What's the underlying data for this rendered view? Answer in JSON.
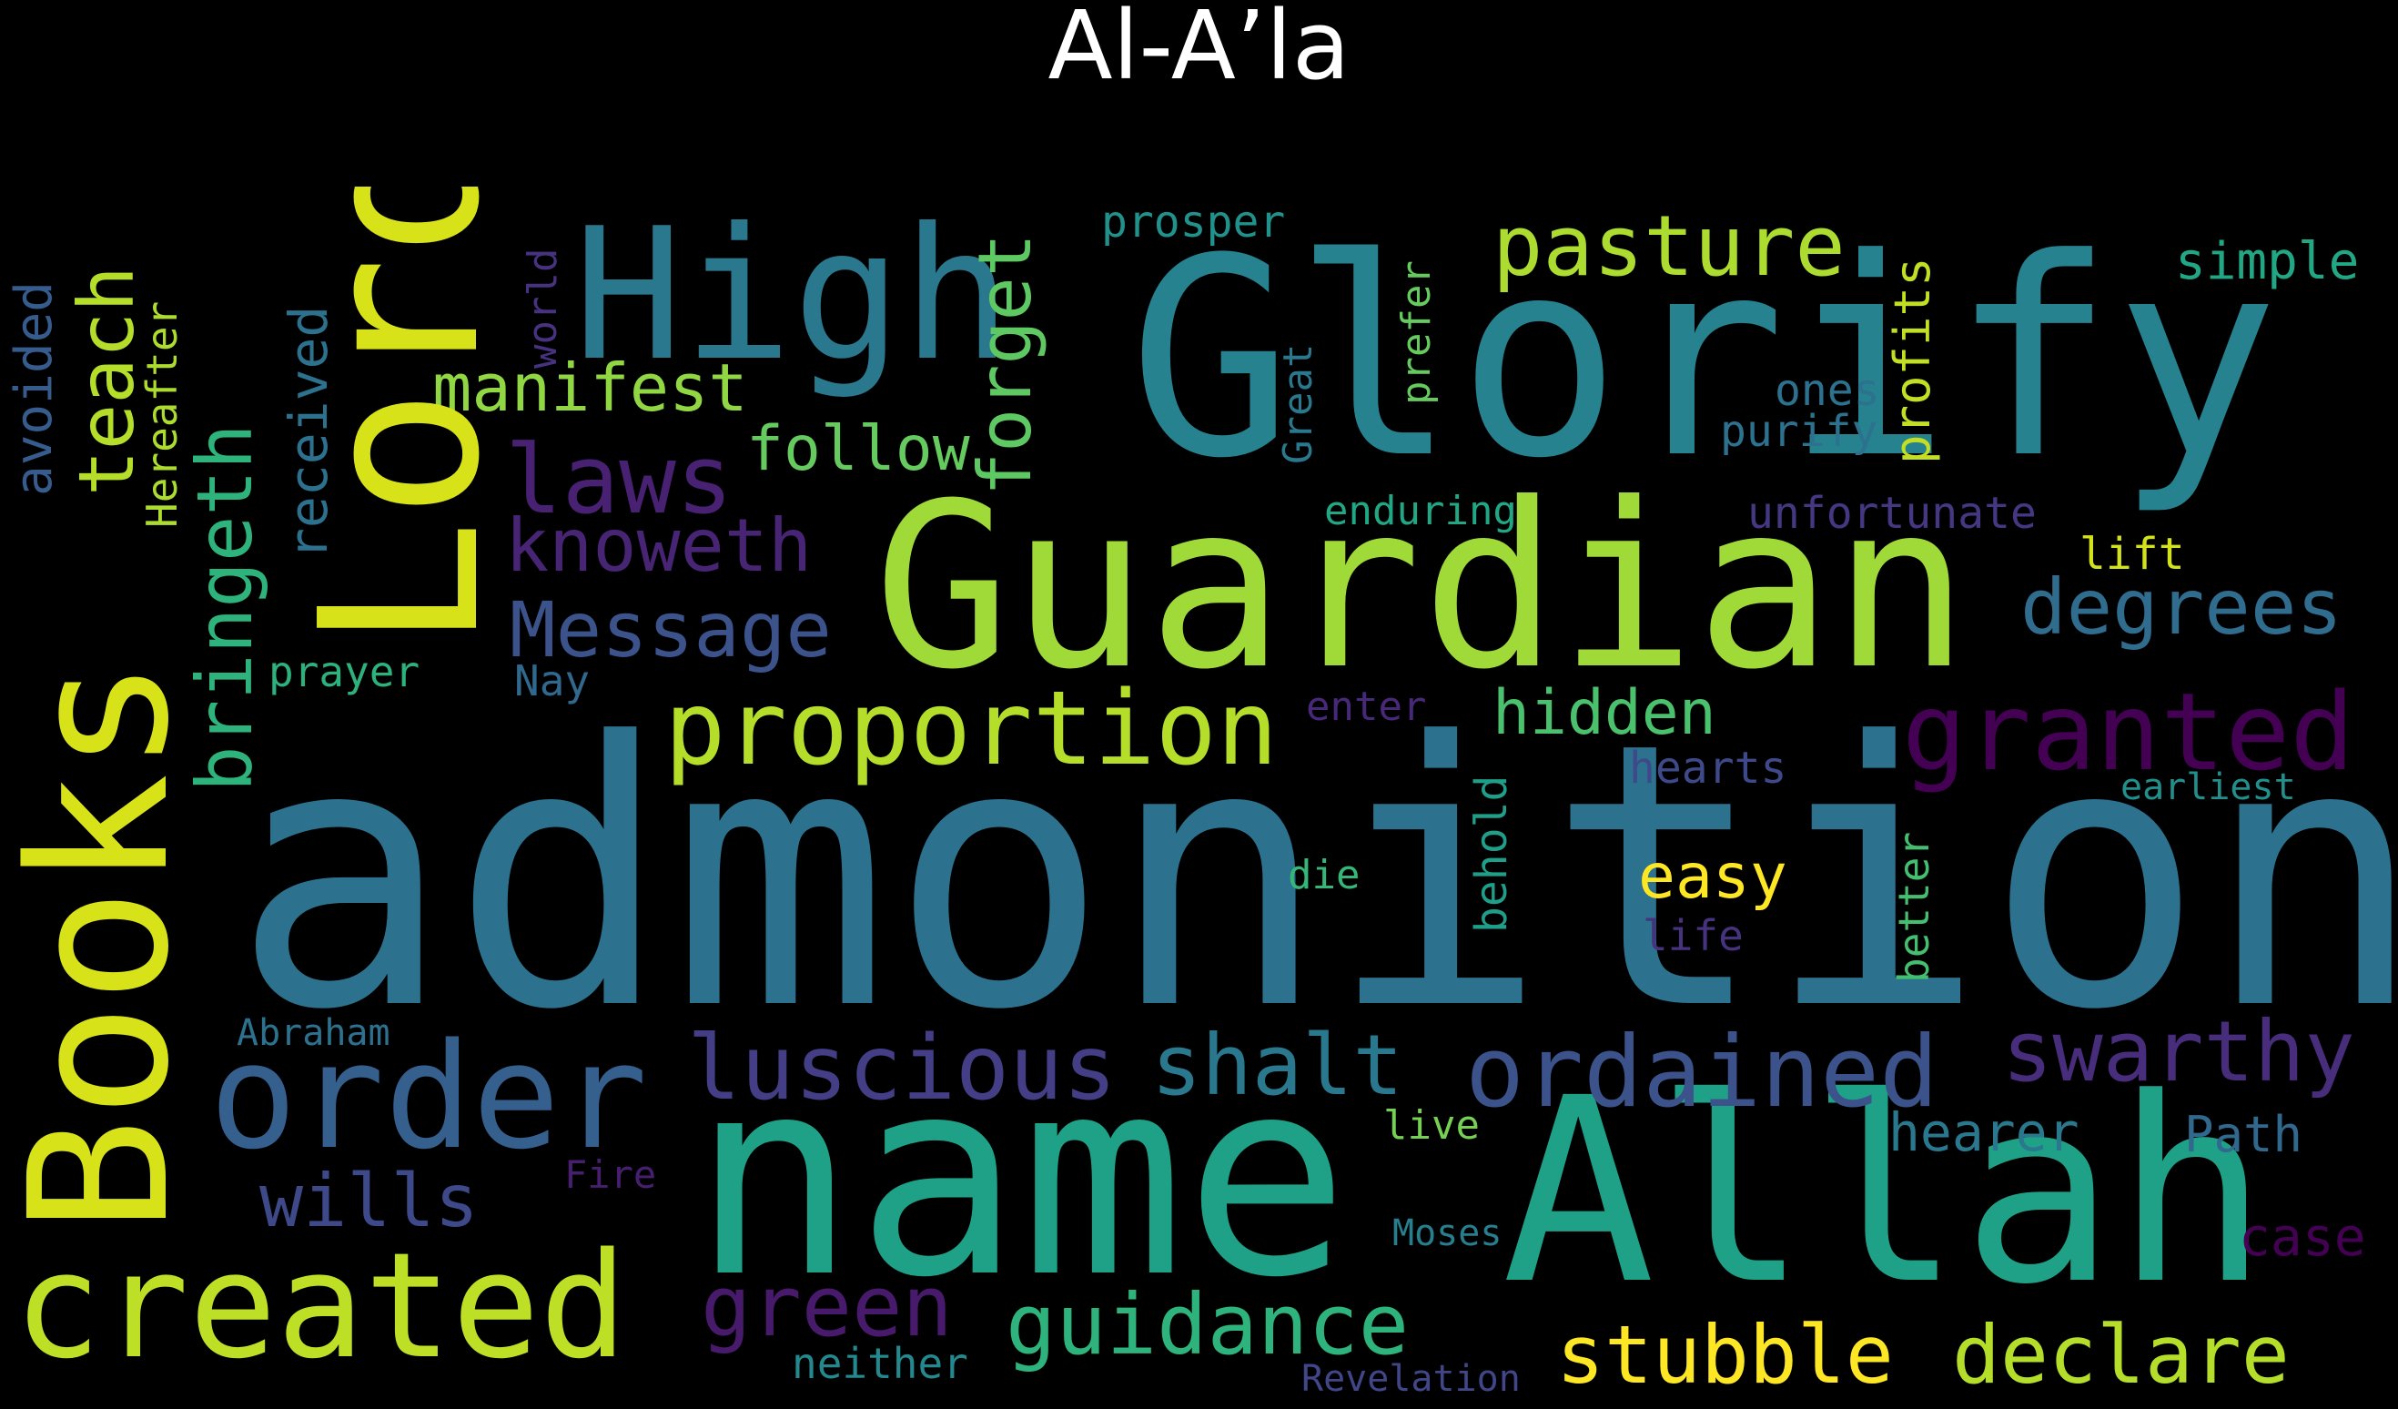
{
  "title": "Al-A’la",
  "words": [
    {
      "text": "admonition",
      "color": "#2c728e"
    },
    {
      "text": "Glorify",
      "color": "#26828e"
    },
    {
      "text": "Guardian",
      "color": "#a0da39"
    },
    {
      "text": "name",
      "color": "#1fa187"
    },
    {
      "text": "Allah",
      "color": "#1fa187"
    },
    {
      "text": "Lord",
      "color": "#d8e219"
    },
    {
      "text": "Books",
      "color": "#d8e219"
    },
    {
      "text": "High",
      "color": "#2a788e"
    },
    {
      "text": "created",
      "color": "#bddf26"
    },
    {
      "text": "order",
      "color": "#355f8d"
    },
    {
      "text": "proportion",
      "color": "#b5de2b"
    },
    {
      "text": "granted",
      "color": "#440154"
    },
    {
      "text": "ordained",
      "color": "#3b528b"
    },
    {
      "text": "swarthy",
      "color": "#472d7b"
    },
    {
      "text": "luscious",
      "color": "#433e85"
    },
    {
      "text": "shalt",
      "color": "#2a788e"
    },
    {
      "text": "guidance",
      "color": "#2eb37c"
    },
    {
      "text": "green",
      "color": "#481a6c"
    },
    {
      "text": "stubble",
      "color": "#fde725"
    },
    {
      "text": "declare",
      "color": "#b5de2b"
    },
    {
      "text": "pasture",
      "color": "#addc30"
    },
    {
      "text": "degrees",
      "color": "#2f6c8e"
    },
    {
      "text": "Message",
      "color": "#3b528b"
    },
    {
      "text": "laws",
      "color": "#482173"
    },
    {
      "text": "manifest",
      "color": "#90d743"
    },
    {
      "text": "knoweth",
      "color": "#482475"
    },
    {
      "text": "follow",
      "color": "#65cb5e"
    },
    {
      "text": "forget",
      "color": "#5ec962"
    },
    {
      "text": "teach",
      "color": "#b5de2b"
    },
    {
      "text": "bringeth",
      "color": "#2eb37c"
    },
    {
      "text": "wills",
      "color": "#3e4989"
    },
    {
      "text": "hidden",
      "color": "#4ac16d"
    },
    {
      "text": "easy",
      "color": "#fde725"
    },
    {
      "text": "profits",
      "color": "#c2df23"
    },
    {
      "text": "simple",
      "color": "#22a785"
    },
    {
      "text": "prosper",
      "color": "#21918c"
    },
    {
      "text": "received",
      "color": "#2c728e"
    },
    {
      "text": "avoided",
      "color": "#365c8d"
    },
    {
      "text": "Hereafter",
      "color": "#addc30"
    },
    {
      "text": "world",
      "color": "#46327e"
    },
    {
      "text": "Great",
      "color": "#2a788e"
    },
    {
      "text": "prefer",
      "color": "#65cb5e"
    },
    {
      "text": "ones",
      "color": "#2c728e"
    },
    {
      "text": "purify",
      "color": "#2c728e"
    },
    {
      "text": "enduring",
      "color": "#22a785"
    },
    {
      "text": "unfortunate",
      "color": "#453781"
    },
    {
      "text": "lift",
      "color": "#d2e21b"
    },
    {
      "text": "prayer",
      "color": "#2db27d"
    },
    {
      "text": "Nay",
      "color": "#31688e"
    },
    {
      "text": "enter",
      "color": "#482878"
    },
    {
      "text": "hearts",
      "color": "#3e4989"
    },
    {
      "text": "earliest",
      "color": "#21908d"
    },
    {
      "text": "behold",
      "color": "#1f9e89"
    },
    {
      "text": "better",
      "color": "#44bf70"
    },
    {
      "text": "die",
      "color": "#35b779"
    },
    {
      "text": "life",
      "color": "#46327e"
    },
    {
      "text": "Abraham",
      "color": "#2c728e"
    },
    {
      "text": "hearer",
      "color": "#2a788e"
    },
    {
      "text": "Path",
      "color": "#31688e"
    },
    {
      "text": "live",
      "color": "#75d054"
    },
    {
      "text": "Fire",
      "color": "#481f70"
    },
    {
      "text": "Moses",
      "color": "#277f8e"
    },
    {
      "text": "case",
      "color": "#440154"
    },
    {
      "text": "neither",
      "color": "#23898e"
    },
    {
      "text": "Revelation",
      "color": "#404688"
    }
  ]
}
